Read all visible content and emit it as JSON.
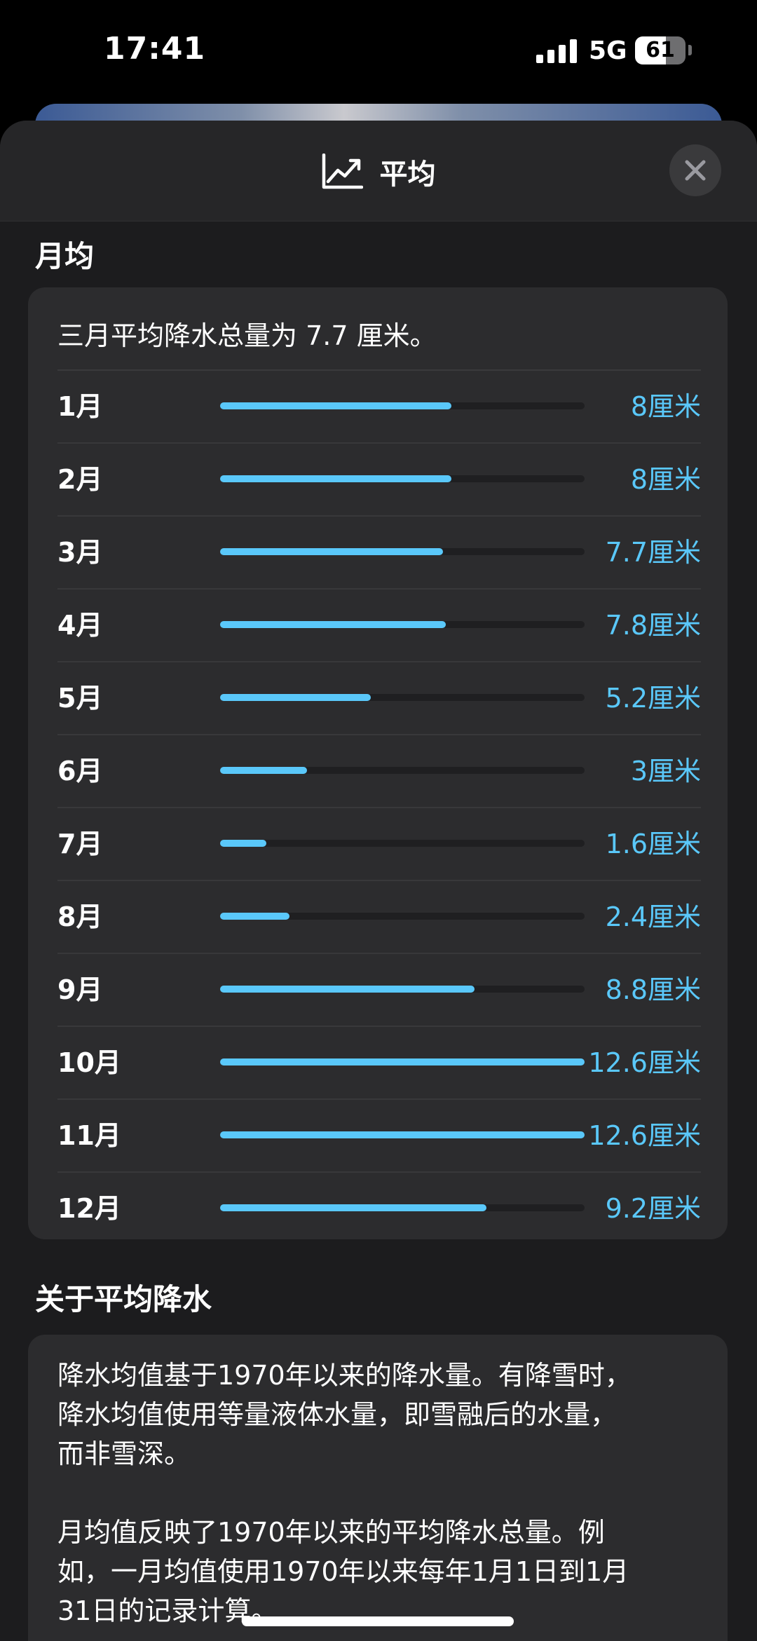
{
  "status_bar": {
    "time": "17:41",
    "network": "5G",
    "battery_percent": "61",
    "battery_level": 0.61
  },
  "header": {
    "icon": "chart-line-icon",
    "title": "平均",
    "close_icon": "close-icon"
  },
  "monthly": {
    "section_title": "月均",
    "summary": "三月平均降水总量为 7.7 厘米。",
    "accent_color": "#5ac8fa",
    "rows": [
      {
        "month": "1月",
        "value": "8厘米",
        "amount": 8.0
      },
      {
        "month": "2月",
        "value": "8厘米",
        "amount": 8.0
      },
      {
        "month": "3月",
        "value": "7.7厘米",
        "amount": 7.7
      },
      {
        "month": "4月",
        "value": "7.8厘米",
        "amount": 7.8
      },
      {
        "month": "5月",
        "value": "5.2厘米",
        "amount": 5.2
      },
      {
        "month": "6月",
        "value": "3厘米",
        "amount": 3.0
      },
      {
        "month": "7月",
        "value": "1.6厘米",
        "amount": 1.6
      },
      {
        "month": "8月",
        "value": "2.4厘米",
        "amount": 2.4
      },
      {
        "month": "9月",
        "value": "8.8厘米",
        "amount": 8.8
      },
      {
        "month": "10月",
        "value": "12.6厘米",
        "amount": 12.6
      },
      {
        "month": "11月",
        "value": "12.6厘米",
        "amount": 12.6
      },
      {
        "month": "12月",
        "value": "9.2厘米",
        "amount": 9.2
      }
    ],
    "max_amount": 12.6
  },
  "about": {
    "section_title": "关于平均降水",
    "text": "降水均值基于1970年以来的降水量。有降雪时，\n降水均值使用等量液体水量，即雪融后的水量，\n而非雪深。\n\n月均值反映了1970年以来的平均降水总量。例\n如，一月均值使用1970年以来每年1月1日到1月\n31日的记录计算。"
  }
}
